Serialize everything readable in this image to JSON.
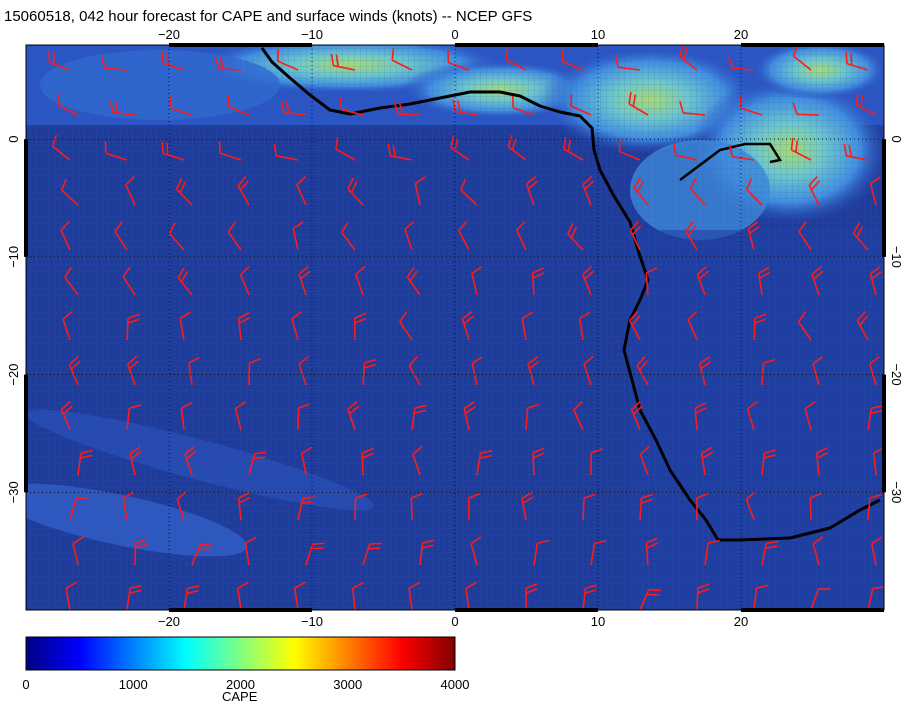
{
  "title": "15060518, 042 hour forecast for CAPE and surface winds (knots) -- NCEP GFS",
  "map": {
    "lon_range": [
      -30,
      30
    ],
    "lat_range": [
      -40,
      8
    ],
    "lon_ticks": [
      -20,
      -10,
      0,
      10,
      20
    ],
    "lat_ticks": [
      0,
      -10,
      -20,
      -30
    ],
    "grid": true,
    "grid_style": "dotted",
    "colors": {
      "ocean": "#1f3c9a",
      "ocean_dark": "#16318a",
      "land_low": "#2546b8",
      "cape_medium": "#3f8fe0",
      "cape_high": "#55c8d8",
      "cape_peak": "#9ad86a",
      "coastline": "#000000",
      "wind_barbs": "#ff1a1a"
    }
  },
  "colorbar": {
    "title": "CAPE",
    "range": [
      0,
      4000
    ],
    "tick_values": [
      0,
      1000,
      2000,
      3000,
      4000
    ],
    "tick_labels": [
      "0",
      "1000",
      "2000",
      "3000",
      "4000"
    ],
    "colors": [
      "#000080",
      "#0000ff",
      "#0080ff",
      "#00ffff",
      "#80ff80",
      "#ffff00",
      "#ff8000",
      "#ff0000",
      "#800000"
    ]
  }
}
